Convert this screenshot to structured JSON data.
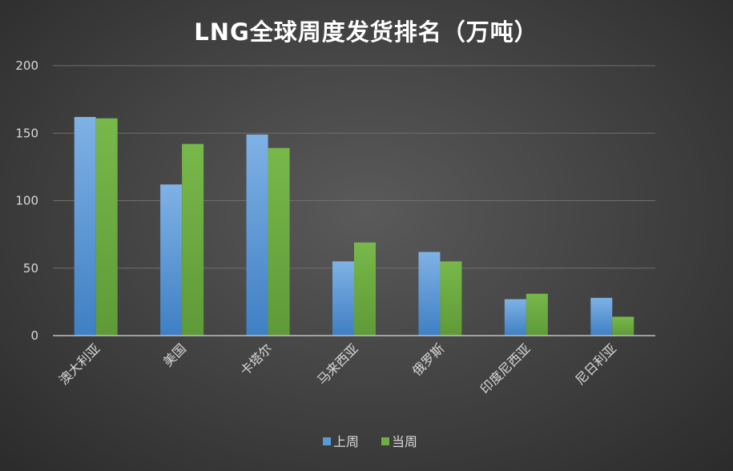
{
  "chart_data": {
    "type": "bar",
    "title": "LNG全球周度发货排名（万吨）",
    "xlabel": "",
    "ylabel": "",
    "ylim": [
      0,
      200
    ],
    "yticks": [
      0,
      50,
      100,
      150,
      200
    ],
    "grid": true,
    "legend_position": "bottom",
    "categories": [
      "澳大利亚",
      "美国",
      "卡塔尔",
      "马来西亚",
      "俄罗斯",
      "印度尼西亚",
      "尼日利亚"
    ],
    "series": [
      {
        "name": "上周",
        "color": "#5b9bd5",
        "values": [
          162,
          112,
          149,
          55,
          62,
          27,
          28
        ]
      },
      {
        "name": "当周",
        "color": "#70ad47",
        "values": [
          161,
          142,
          139,
          69,
          55,
          31,
          14
        ]
      }
    ]
  }
}
